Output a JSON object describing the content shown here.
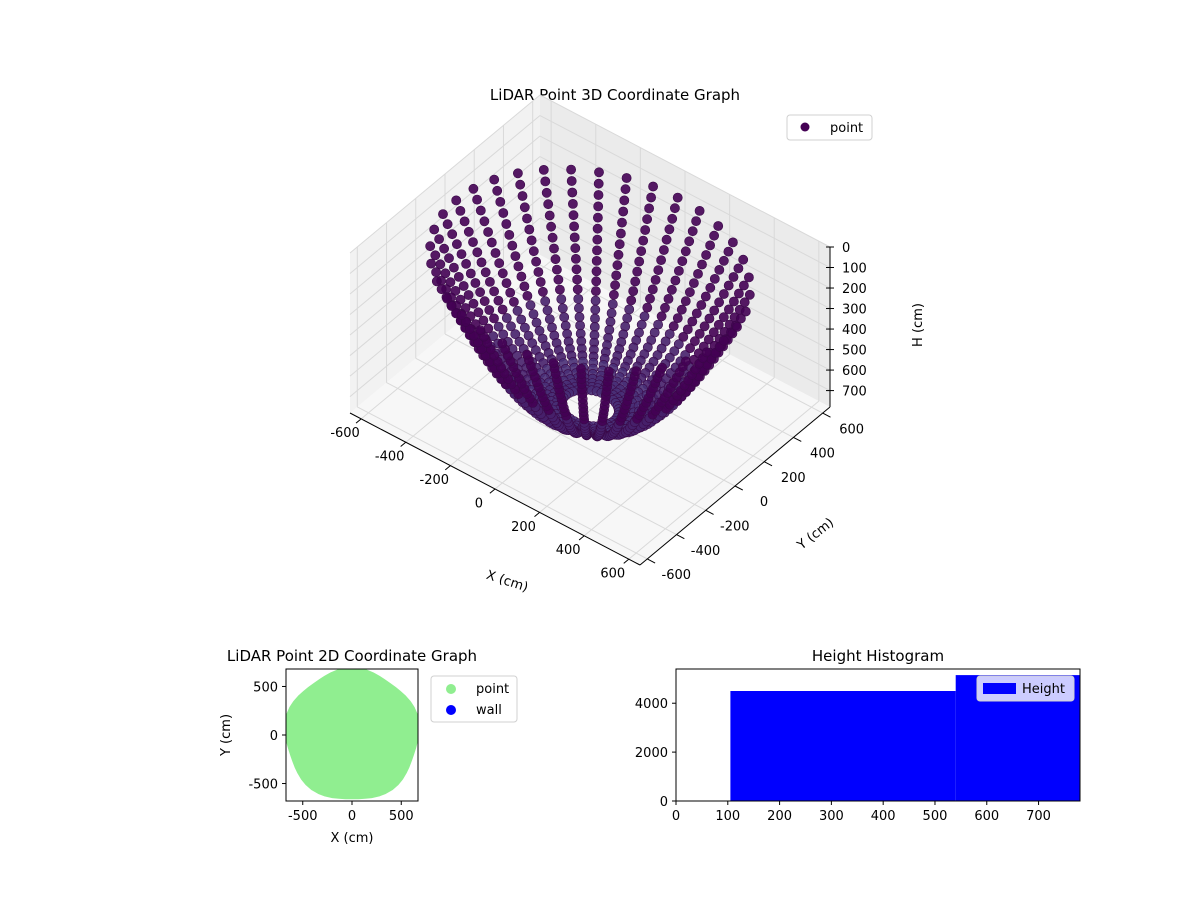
{
  "chart_data": [
    {
      "type": "scatter",
      "projection": "3d",
      "title": "LiDAR Point 3D Coordinate Graph",
      "xlabel": "X (cm)",
      "ylabel": "Y (cm)",
      "zlabel": "H (cm)",
      "xlim": [
        -650,
        650
      ],
      "ylim": [
        -650,
        650
      ],
      "zlim": [
        780,
        0
      ],
      "z_inverted": true,
      "x_ticks": [
        -600,
        -400,
        -200,
        0,
        200,
        400,
        600
      ],
      "y_ticks": [
        -600,
        -400,
        -200,
        0,
        200,
        400,
        600
      ],
      "z_ticks": [
        0,
        100,
        200,
        300,
        400,
        500,
        600,
        700
      ],
      "grid": true,
      "legend_position": "upper-right",
      "series": [
        {
          "name": "point",
          "color": "#440154",
          "shape": "bowl of arcs",
          "rim_radius": 600,
          "rim_height": 100,
          "bottom_height": 770,
          "arc_count": 36
        }
      ]
    },
    {
      "type": "scatter",
      "title": "LiDAR Point 2D Coordinate Graph",
      "xlabel": "X (cm)",
      "ylabel": "Y (cm)",
      "xlim": [
        -670,
        670
      ],
      "ylim": [
        -680,
        680
      ],
      "x_ticks": [
        -500,
        0,
        500
      ],
      "y_ticks": [
        -500,
        0,
        500
      ],
      "legend_position": "outside-right",
      "series": [
        {
          "name": "point",
          "color": "#90ee90",
          "shape": "filled disk",
          "radius": 640
        },
        {
          "name": "wall",
          "color": "#0000ff",
          "points": []
        }
      ]
    },
    {
      "type": "bar",
      "title": "Height Histogram",
      "xlim": [
        0,
        780
      ],
      "ylim": [
        0,
        5400
      ],
      "x_ticks": [
        0,
        100,
        200,
        300,
        400,
        500,
        600,
        700
      ],
      "y_ticks": [
        0,
        2000,
        4000
      ],
      "legend_position": "upper-right",
      "series": [
        {
          "name": "Height",
          "color": "#0000ff",
          "bins": [
            {
              "start": 105,
              "end": 540,
              "count": 4500
            },
            {
              "start": 540,
              "end": 780,
              "count": 5150
            }
          ]
        }
      ]
    }
  ]
}
